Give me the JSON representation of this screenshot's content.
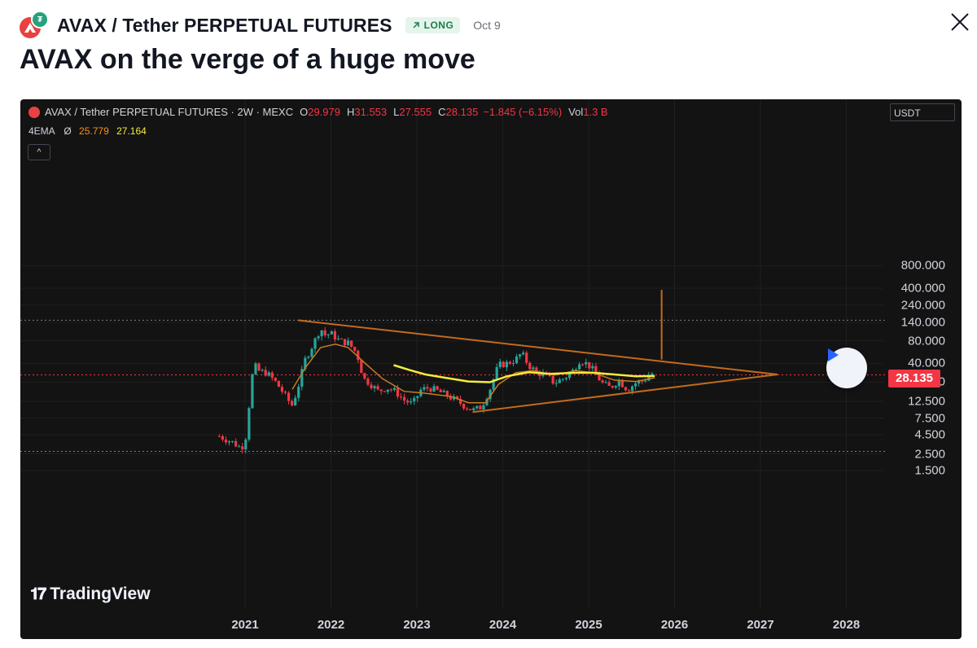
{
  "header": {
    "symbol": "AVAX / Tether PERPETUAL FUTURES",
    "badge": "LONG",
    "date": "Oct 9",
    "title": "AVAX on the verge of a huge move"
  },
  "legend": {
    "symbol_line": "AVAX / Tether PERPETUAL FUTURES · 2W · MEXC",
    "o_key": "O",
    "o_val": "29.979",
    "h_key": "H",
    "h_val": "31.553",
    "l_key": "L",
    "l_val": "27.555",
    "c_key": "C",
    "c_val": "28.135",
    "change": "−1.845 (−6.15%)",
    "vol_key": "Vol",
    "vol_val": "1.3 B",
    "ema_label": "4EMA",
    "ema_symbol": "Ø",
    "ema1": "25.779",
    "ema2": "27.164"
  },
  "currency": "USDT",
  "last_price": "28.135",
  "branding": "TradingView",
  "colors": {
    "background": "#131313",
    "up": "#26a69a",
    "down": "#f23645",
    "trendline": "#c46a1c",
    "ema_short": "#c87a23",
    "ema_long": "#f5eb3b",
    "price_line": "#f23645"
  },
  "chart_data": {
    "type": "candlestick",
    "interval": "2W",
    "scale": "log",
    "x_ticks": [
      "2021",
      "2022",
      "2023",
      "2024",
      "2025",
      "2026",
      "2027",
      "2028"
    ],
    "y_ticks": [
      "800.000",
      "400.000",
      "240.000",
      "140.000",
      "80.000",
      "40.000",
      "22.500",
      "12.500",
      "7.500",
      "4.500",
      "2.500",
      "1.500"
    ],
    "ylim": [
      1.2,
      1300
    ],
    "last_close": 28.135,
    "price_path": [
      [
        2020.7,
        4.3
      ],
      [
        2020.85,
        3.6
      ],
      [
        2020.95,
        3.0
      ],
      [
        2021.0,
        3.5
      ],
      [
        2021.05,
        12
      ],
      [
        2021.1,
        40
      ],
      [
        2021.15,
        32
      ],
      [
        2021.25,
        30
      ],
      [
        2021.35,
        23
      ],
      [
        2021.45,
        16
      ],
      [
        2021.5,
        13
      ],
      [
        2021.55,
        11
      ],
      [
        2021.62,
        20
      ],
      [
        2021.7,
        45
      ],
      [
        2021.8,
        75
      ],
      [
        2021.88,
        120
      ],
      [
        2021.92,
        95
      ],
      [
        2022.0,
        100
      ],
      [
        2022.1,
        80
      ],
      [
        2022.2,
        75
      ],
      [
        2022.3,
        55
      ],
      [
        2022.38,
        25
      ],
      [
        2022.45,
        22
      ],
      [
        2022.55,
        17
      ],
      [
        2022.65,
        19
      ],
      [
        2022.75,
        17
      ],
      [
        2022.85,
        13
      ],
      [
        2022.95,
        11.5
      ],
      [
        2023.05,
        18
      ],
      [
        2023.15,
        19
      ],
      [
        2023.25,
        17
      ],
      [
        2023.35,
        15
      ],
      [
        2023.45,
        13
      ],
      [
        2023.55,
        11
      ],
      [
        2023.65,
        9.5
      ],
      [
        2023.75,
        10.5
      ],
      [
        2023.85,
        18
      ],
      [
        2023.95,
        38
      ],
      [
        2024.05,
        40
      ],
      [
        2024.15,
        45
      ],
      [
        2024.22,
        55
      ],
      [
        2024.3,
        38
      ],
      [
        2024.4,
        30
      ],
      [
        2024.5,
        28
      ],
      [
        2024.6,
        22
      ],
      [
        2024.7,
        25
      ],
      [
        2024.8,
        30
      ],
      [
        2024.9,
        45
      ],
      [
        2025.0,
        38
      ],
      [
        2025.08,
        30
      ],
      [
        2025.15,
        22
      ],
      [
        2025.25,
        19
      ],
      [
        2025.35,
        24
      ],
      [
        2025.45,
        18
      ],
      [
        2025.55,
        22
      ],
      [
        2025.65,
        24
      ],
      [
        2025.72,
        30
      ],
      [
        2025.77,
        28.1
      ]
    ],
    "ema_short": [
      [
        2021.55,
        18
      ],
      [
        2021.7,
        35
      ],
      [
        2021.88,
        65
      ],
      [
        2022.05,
        72
      ],
      [
        2022.2,
        65
      ],
      [
        2022.4,
        40
      ],
      [
        2022.6,
        25
      ],
      [
        2022.85,
        17
      ],
      [
        2023.1,
        16
      ],
      [
        2023.4,
        14.5
      ],
      [
        2023.6,
        12
      ],
      [
        2023.8,
        12
      ],
      [
        2023.95,
        21
      ],
      [
        2024.15,
        30
      ],
      [
        2024.35,
        32
      ],
      [
        2024.6,
        28
      ],
      [
        2024.85,
        32
      ],
      [
        2025.05,
        30
      ],
      [
        2025.3,
        24
      ],
      [
        2025.55,
        23
      ],
      [
        2025.77,
        25.779
      ]
    ],
    "ema_long": [
      [
        2022.73,
        38
      ],
      [
        2022.9,
        33
      ],
      [
        2023.1,
        28.5
      ],
      [
        2023.35,
        25.5
      ],
      [
        2023.6,
        23
      ],
      [
        2023.85,
        22.5
      ],
      [
        2024.05,
        27
      ],
      [
        2024.3,
        30.5
      ],
      [
        2024.55,
        29
      ],
      [
        2024.85,
        30
      ],
      [
        2025.05,
        30
      ],
      [
        2025.3,
        28.5
      ],
      [
        2025.55,
        27
      ],
      [
        2025.77,
        27.164
      ]
    ],
    "trendlines": [
      {
        "name": "upper",
        "points": [
          [
            2021.62,
            150
          ],
          [
            2027.2,
            28.5
          ]
        ]
      },
      {
        "name": "lower",
        "points": [
          [
            2023.65,
            9.0
          ],
          [
            2027.2,
            28.5
          ]
        ]
      },
      {
        "name": "target",
        "points": [
          [
            2025.85,
            45
          ],
          [
            2025.85,
            380
          ]
        ]
      }
    ],
    "horizontal_levels": [
      150,
      2.7,
      28.135
    ]
  }
}
